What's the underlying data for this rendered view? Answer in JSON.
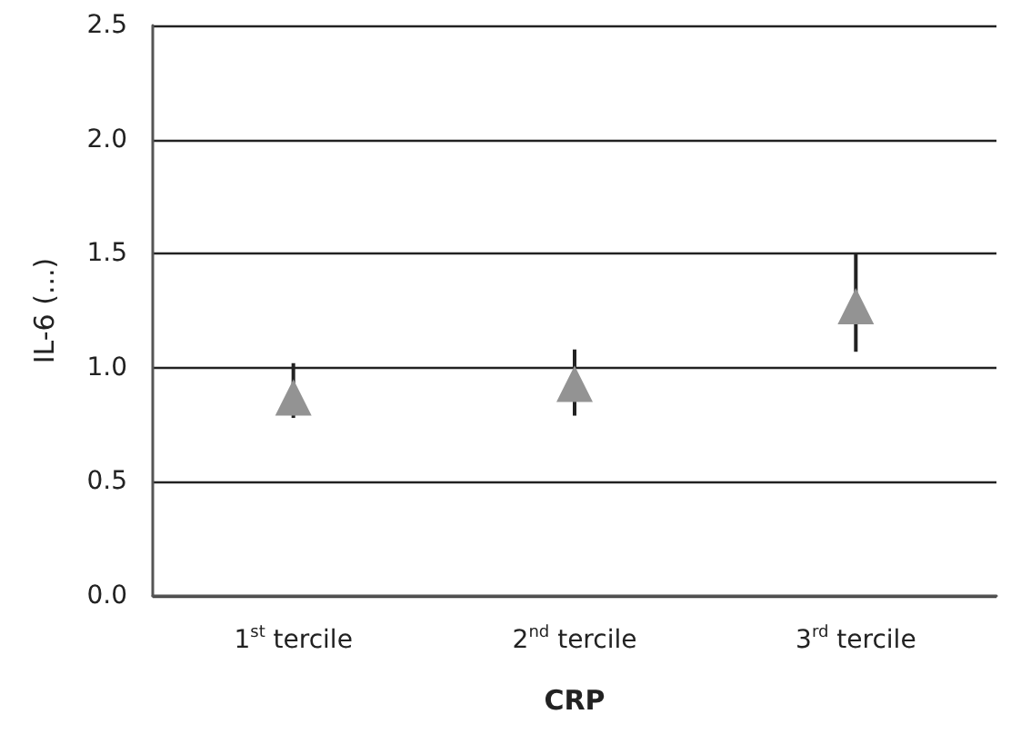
{
  "chart_data": {
    "type": "scatter",
    "xlabel": "CRP",
    "ylabel": "IL-6 (...)",
    "categories": [
      "1$^{st}$ tercile",
      "2$^{nd}$ tercile",
      "3$^{rd}$ tercile"
    ],
    "series": [
      {
        "color": "#939393",
        "values": [
          0.87,
          0.93,
          1.27
        ],
        "errors": [
          [
            0.78,
            1.02
          ],
          [
            0.79,
            1.08
          ],
          [
            1.07,
            1.5
          ]
        ]
      }
    ],
    "ylim": [
      0,
      2.5
    ],
    "yticks": [
      {
        "value": 0,
        "label": "0.0"
      },
      0.5,
      {
        "value": 1,
        "label": "1.0"
      },
      1.5,
      {
        "value": 2,
        "label": "2.0"
      },
      2.5
    ],
    "grid": "y",
    "marker": "triangle"
  }
}
